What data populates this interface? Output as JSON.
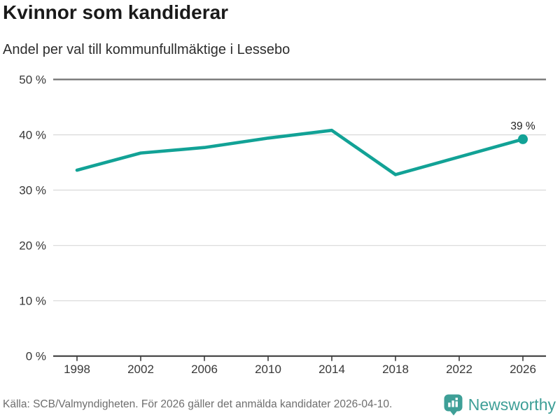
{
  "header": {
    "title": "Kvinnor som kandiderar",
    "subtitle": "Andel per val till kommunfullmäktige i Lessebo"
  },
  "chart_data": {
    "type": "line",
    "title": "Kvinnor som kandiderar",
    "subtitle": "Andel per val till kommunfullmäktige i Lessebo",
    "x": [
      1998,
      2002,
      2006,
      2010,
      2014,
      2018,
      2022,
      2026
    ],
    "values": [
      33.6,
      36.7,
      37.7,
      39.4,
      40.8,
      32.8,
      36.0,
      39.2
    ],
    "unit": "%",
    "xlabel": "",
    "ylabel": "",
    "ylim": [
      0,
      50
    ],
    "yticks": [
      0,
      10,
      20,
      30,
      40,
      50
    ],
    "ytick_suffix": " %",
    "xticklabels": [
      "1998",
      "2002",
      "2006",
      "2010",
      "2014",
      "2018",
      "2022",
      "2026"
    ],
    "grid": true,
    "legend_position": "none",
    "end_label": "39 %"
  },
  "footer": {
    "source": "Källa: SCB/Valmyndigheten. För 2026 gäller det anmälda kandidater 2026-04-10.",
    "brand_name": "Newsworthy",
    "logo_icon": "newsworthy-speech-bubble-bar-chart-icon"
  },
  "colors": {
    "line": "#12a296",
    "marker": "#12a296",
    "grid_light": "#dcdcdc",
    "grid_top": "#707070",
    "axis": "#3c3c3c",
    "tick_text": "#383838",
    "annotation_text": "#222222",
    "title_text": "#1a1a1a",
    "subtitle_text": "#2d2d2d",
    "source_text": "#6e6e6e",
    "brand_teal": "#3e9f97",
    "background": "#ffffff"
  }
}
